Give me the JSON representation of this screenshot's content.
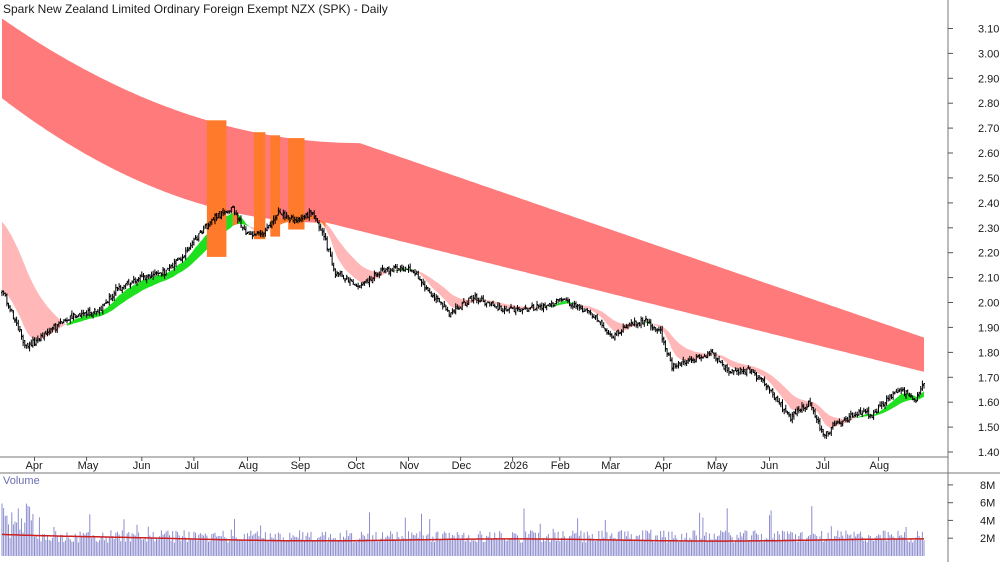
{
  "chart_data": [
    {
      "type": "candlestick",
      "title": "Spark New Zealand Limited Ordinary Foreign Exempt NZX (SPK) - Daily",
      "x_tick_labels": [
        "Apr",
        "May",
        "Jun",
        "Jul",
        "Aug",
        "Sep",
        "Oct",
        "Nov",
        "Dec",
        "2026",
        "Feb",
        "Mar",
        "Apr",
        "May",
        "Jun",
        "Jul",
        "Aug"
      ],
      "y_tick_labels": [
        "3.10",
        "3.00",
        "2.90",
        "2.80",
        "2.70",
        "2.60",
        "2.50",
        "2.40",
        "2.30",
        "2.20",
        "2.10",
        "2.00",
        "1.90",
        "1.80",
        "1.70",
        "1.60",
        "1.50",
        "1.40"
      ],
      "ylim": [
        1.38,
        3.15
      ],
      "grid": false,
      "colors": {
        "long_term_band": "#ff7a7a",
        "short_term_band": "#ffb7b7",
        "band_cross": "#ff7a2a",
        "uptrend_band": "#1fe01f",
        "candle": "#000000",
        "volume_bar": "#8c8cd0",
        "volume_avg": "#cc2020"
      },
      "price_anchors": [
        [
          0,
          2.05
        ],
        [
          15,
          1.82
        ],
        [
          30,
          1.89
        ],
        [
          45,
          1.95
        ],
        [
          60,
          1.97
        ],
        [
          70,
          2.05
        ],
        [
          85,
          2.1
        ],
        [
          100,
          2.12
        ],
        [
          110,
          2.18
        ],
        [
          120,
          2.26
        ],
        [
          130,
          2.34
        ],
        [
          142,
          2.38
        ],
        [
          150,
          2.27
        ],
        [
          160,
          2.28
        ],
        [
          170,
          2.36
        ],
        [
          182,
          2.32
        ],
        [
          190,
          2.36
        ],
        [
          197,
          2.29
        ],
        [
          205,
          2.12
        ],
        [
          220,
          2.07
        ],
        [
          235,
          2.13
        ],
        [
          250,
          2.14
        ],
        [
          262,
          2.05
        ],
        [
          275,
          1.96
        ],
        [
          290,
          2.02
        ],
        [
          305,
          1.98
        ],
        [
          320,
          1.97
        ],
        [
          335,
          1.99
        ],
        [
          345,
          2.01
        ],
        [
          355,
          1.98
        ],
        [
          365,
          1.94
        ],
        [
          375,
          1.86
        ],
        [
          385,
          1.91
        ],
        [
          395,
          1.93
        ],
        [
          405,
          1.88
        ],
        [
          412,
          1.74
        ],
        [
          425,
          1.77
        ],
        [
          437,
          1.8
        ],
        [
          447,
          1.72
        ],
        [
          460,
          1.73
        ],
        [
          472,
          1.65
        ],
        [
          485,
          1.54
        ],
        [
          497,
          1.6
        ],
        [
          505,
          1.47
        ],
        [
          515,
          1.52
        ],
        [
          527,
          1.56
        ],
        [
          535,
          1.55
        ],
        [
          543,
          1.6
        ],
        [
          552,
          1.65
        ],
        [
          562,
          1.61
        ],
        [
          567,
          1.68
        ]
      ],
      "volume": {
        "title": "Volume",
        "y_tick_labels": [
          "8M",
          "6M",
          "4M",
          "2M"
        ],
        "ylim": [
          0,
          9000000
        ],
        "average_level": 1800000
      }
    }
  ]
}
